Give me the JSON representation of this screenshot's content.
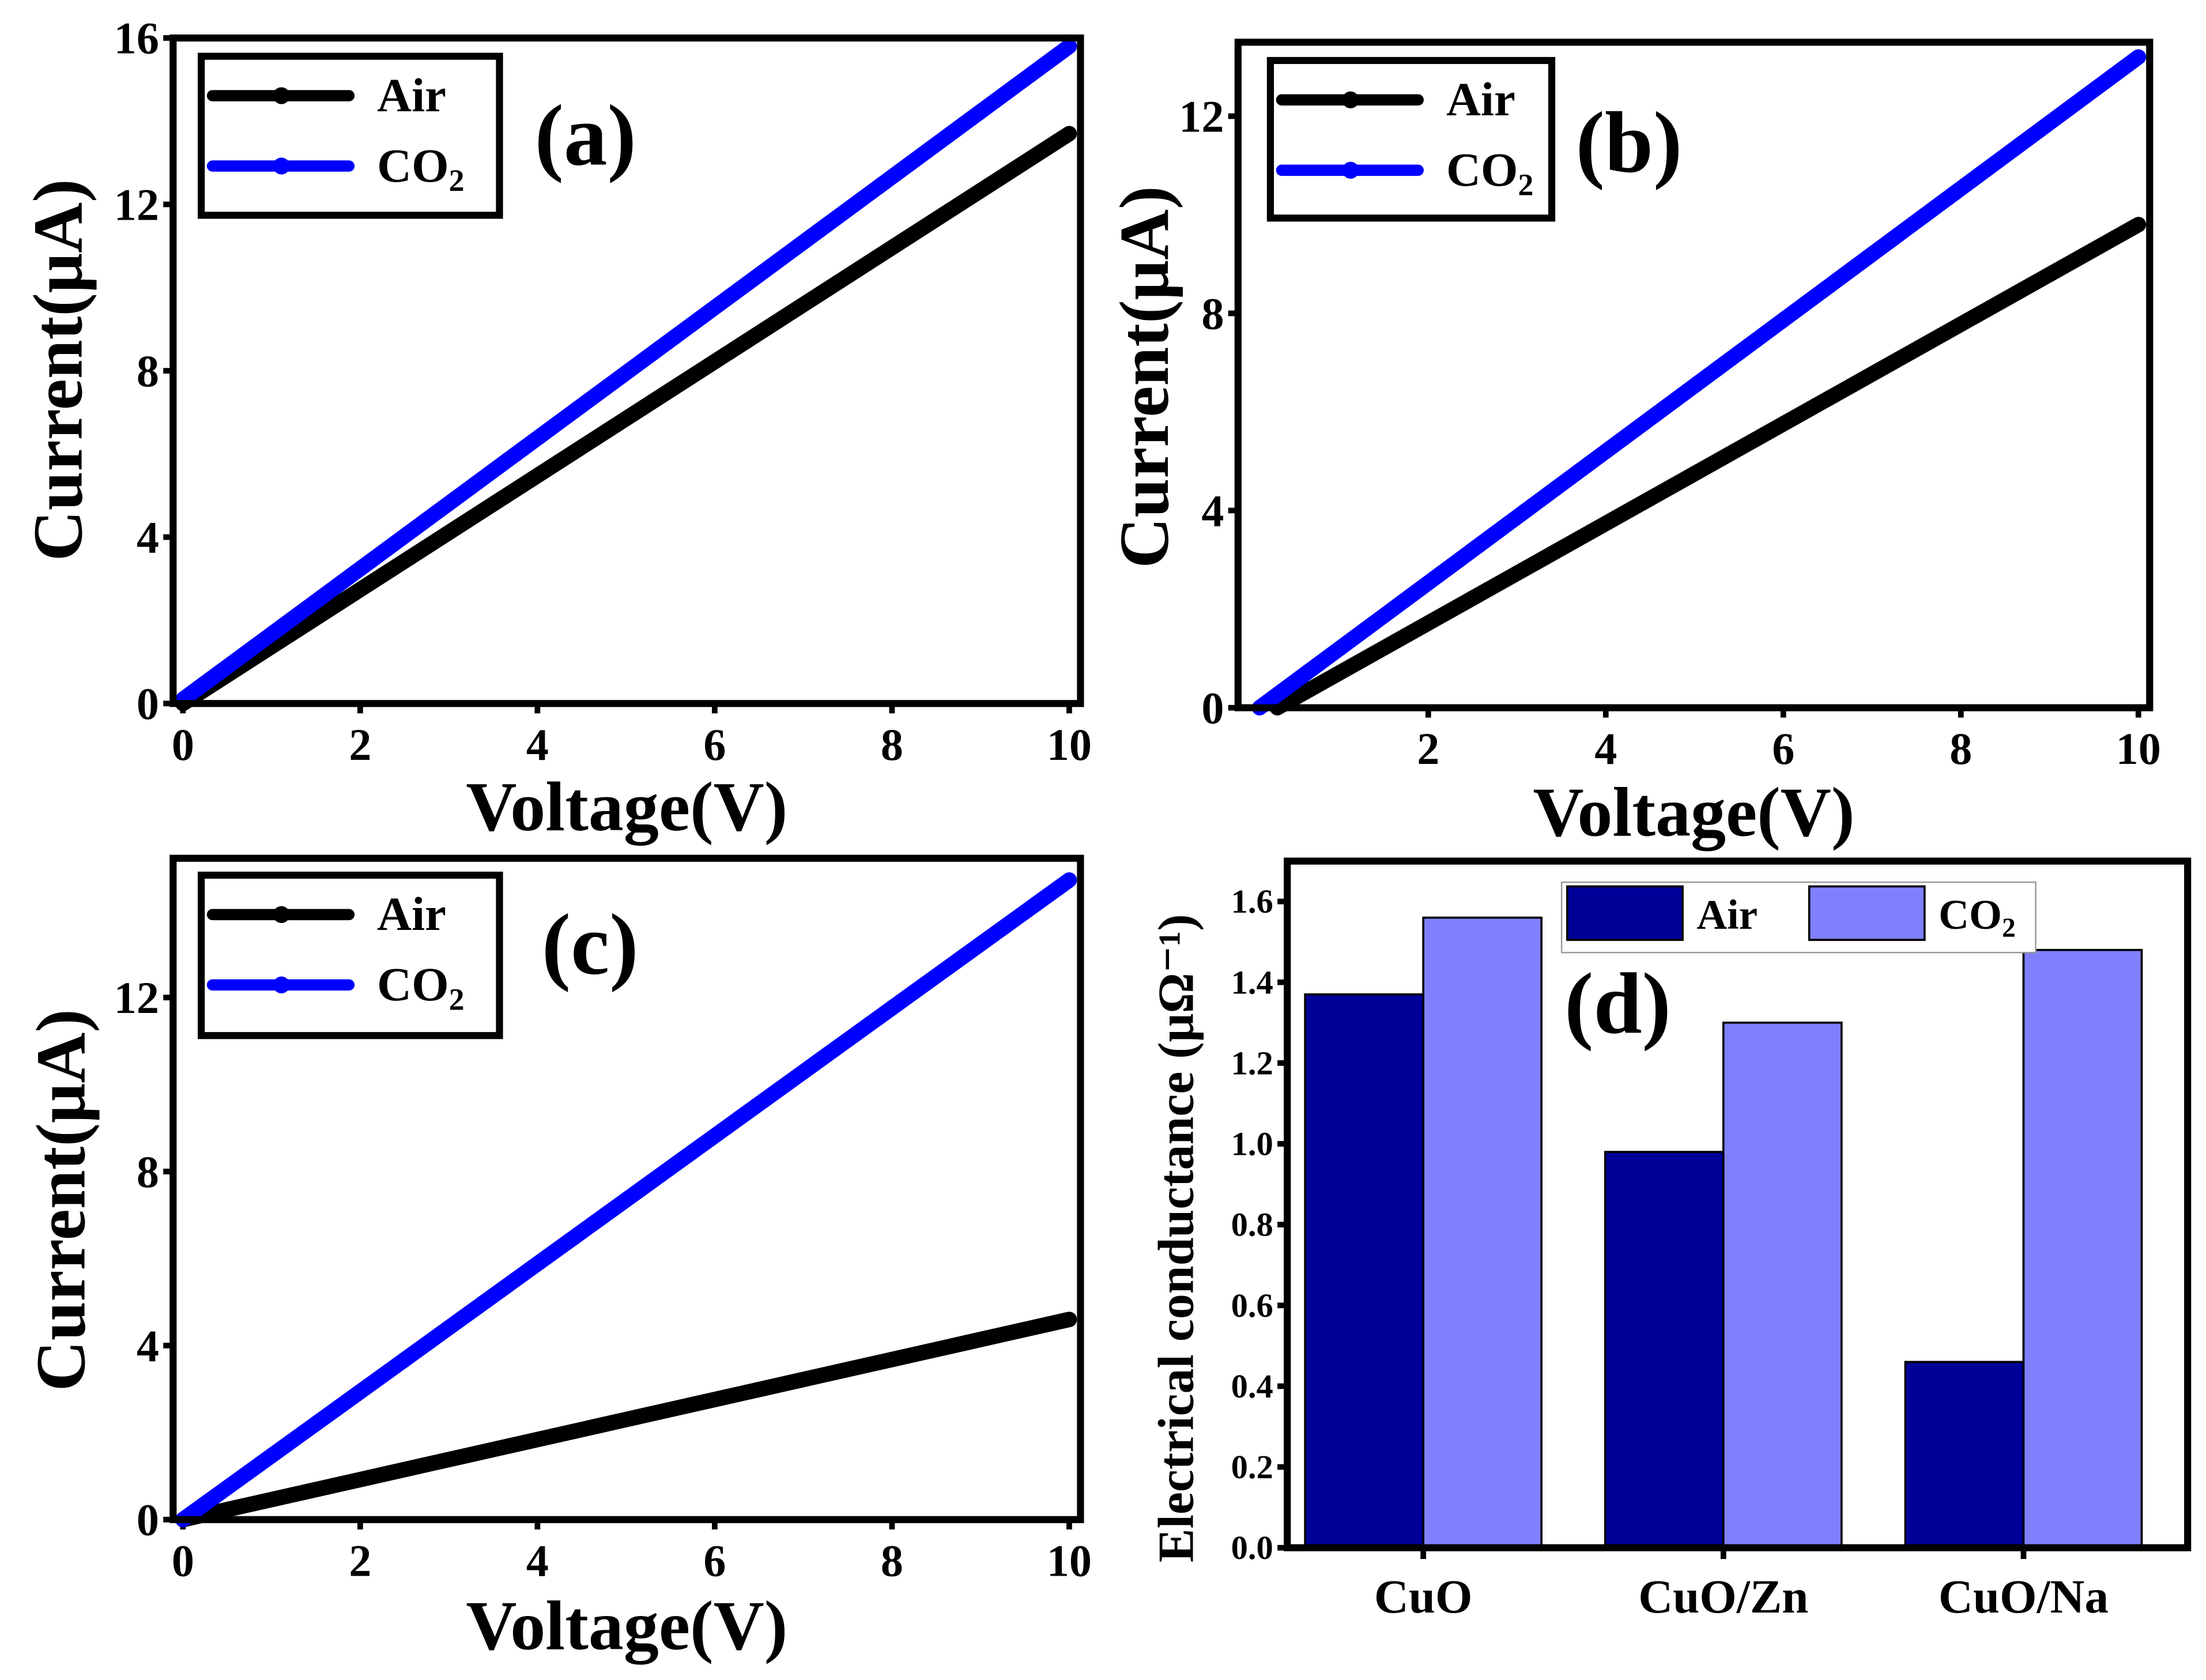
{
  "chart_data": [
    {
      "panel": "(a)",
      "type": "line",
      "xlabel": "Voltage(V)",
      "ylabel": "Current(μA)",
      "xlim": [
        0,
        10
      ],
      "ylim": [
        0,
        16
      ],
      "xticks": [
        "0",
        "2",
        "4",
        "6",
        "8",
        "10"
      ],
      "xtick_values": [
        0,
        2,
        4,
        6,
        8,
        10
      ],
      "yticks": [
        "0",
        "4",
        "8",
        "12",
        "16"
      ],
      "ytick_values": [
        0,
        4,
        8,
        12,
        16
      ],
      "legend_position": "top-left",
      "series": [
        {
          "name": "Air",
          "color": "#000000",
          "x": [
            0,
            10
          ],
          "y": [
            0,
            13.7
          ]
        },
        {
          "name": "CO2",
          "color": "#0000ff",
          "x": [
            0,
            10
          ],
          "y": [
            0.1,
            15.8
          ]
        }
      ]
    },
    {
      "panel": "(b)",
      "type": "line",
      "xlabel": "Voltage(V)",
      "ylabel": "Current(μA)",
      "xlim": [
        0,
        10
      ],
      "ylim": [
        0,
        13.5
      ],
      "xticks": [
        "2",
        "4",
        "6",
        "8",
        "10"
      ],
      "xtick_values": [
        2,
        4,
        6,
        8,
        10
      ],
      "yticks": [
        "0",
        "4",
        "8",
        "12"
      ],
      "ytick_values": [
        0,
        4,
        8,
        12
      ],
      "legend_position": "top-left",
      "series": [
        {
          "name": "Air",
          "color": "#000000",
          "x": [
            0.3,
            10
          ],
          "y": [
            0,
            9.8
          ]
        },
        {
          "name": "CO2",
          "color": "#0000ff",
          "x": [
            0.1,
            10
          ],
          "y": [
            0,
            13.2
          ]
        }
      ]
    },
    {
      "panel": "(c)",
      "type": "line",
      "xlabel": "Voltage(V)",
      "ylabel": "Current(μA)",
      "xlim": [
        0,
        10
      ],
      "ylim": [
        0,
        15.2
      ],
      "xticks": [
        "0",
        "2",
        "4",
        "6",
        "8",
        "10"
      ],
      "xtick_values": [
        0,
        2,
        4,
        6,
        8,
        10
      ],
      "yticks": [
        "0",
        "4",
        "8",
        "12"
      ],
      "ytick_values": [
        0,
        4,
        8,
        12
      ],
      "legend_position": "top-left",
      "series": [
        {
          "name": "Air",
          "color": "#000000",
          "x": [
            0,
            10
          ],
          "y": [
            0,
            4.6
          ]
        },
        {
          "name": "CO2",
          "color": "#0000ff",
          "x": [
            0,
            10
          ],
          "y": [
            0,
            14.7
          ]
        }
      ]
    },
    {
      "panel": "(d)",
      "type": "bar",
      "xlabel": "",
      "ylabel": "Electrical conductance (μΩ⁻¹)",
      "ylim": [
        0,
        1.7
      ],
      "categories": [
        "CuO",
        "CuO/Zn",
        "CuO/Na"
      ],
      "yticks": [
        "0.0",
        "0.2",
        "0.4",
        "0.6",
        "0.8",
        "1.0",
        "1.2",
        "1.4",
        "1.6"
      ],
      "ytick_values": [
        0,
        0.2,
        0.4,
        0.6,
        0.8,
        1.0,
        1.2,
        1.4,
        1.6
      ],
      "legend_position": "top-center",
      "series": [
        {
          "name": "Air",
          "color": "#000099",
          "values": [
            1.37,
            0.98,
            0.46
          ]
        },
        {
          "name": "CO2",
          "color": "#8080ff",
          "values": [
            1.56,
            1.3,
            1.48
          ]
        }
      ]
    }
  ]
}
